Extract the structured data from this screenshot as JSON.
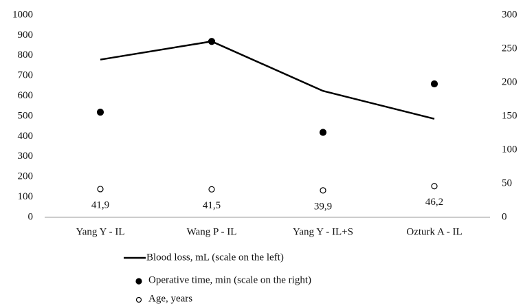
{
  "chart_data": {
    "type": "line",
    "categories": [
      "Yang Y - IL",
      "Wang P - IL",
      "Yang Y - IL+S",
      "Ozturk A - IL"
    ],
    "ylim": [
      0,
      1000
    ],
    "yticks": [
      0,
      100,
      200,
      300,
      400,
      500,
      600,
      700,
      800,
      900,
      1000
    ],
    "y2lim": [
      0,
      300
    ],
    "y2ticks": [
      0,
      50,
      100,
      150,
      200,
      250,
      300
    ],
    "grid": false,
    "series": [
      {
        "name": "Blood loss, mL (scale on the left)",
        "type": "line",
        "color": "#000000",
        "values": [
          780,
          870,
          625,
          487
        ]
      },
      {
        "name": "Operative time, min (scale on the right)",
        "type": "scatter",
        "marker": "filled",
        "axis": "y2",
        "color": "#000000",
        "values": [
          156,
          261,
          126,
          198
        ]
      },
      {
        "name": "Age, years",
        "type": "scatter",
        "marker": "open",
        "axis": "y2",
        "color": "#000000",
        "values": [
          41.9,
          41.5,
          39.9,
          46.2
        ],
        "value_labels": [
          "41,9",
          "41,5",
          "39,9",
          "46,2"
        ]
      }
    ]
  }
}
